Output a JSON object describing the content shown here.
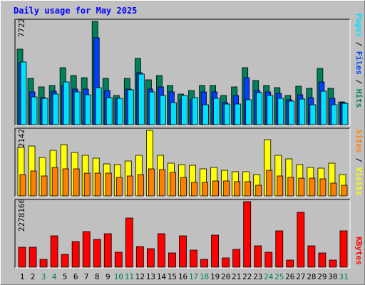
{
  "title": "Daily usage for May 2025",
  "colors": {
    "hits": "#00805c",
    "files": "#0040ff",
    "pages": "#00e0ff",
    "visits": "#ffff00",
    "sites": "#ff8000",
    "kbytes": "#ff0000",
    "title": "#0000ff",
    "weekend_label": "#00805c",
    "weekday_label": "#000000"
  },
  "chart_data": [
    {
      "type": "bar",
      "panel": "hits-files-pages",
      "max_label": "7722",
      "ylim": [
        0,
        7722
      ],
      "categories": [
        "1",
        "2",
        "3",
        "4",
        "5",
        "6",
        "7",
        "8",
        "9",
        "10",
        "11",
        "12",
        "13",
        "14",
        "15",
        "16",
        "17",
        "18",
        "19",
        "20",
        "21",
        "22",
        "23",
        "24",
        "25",
        "26",
        "27",
        "28",
        "29",
        "30",
        "31"
      ],
      "weekend_days": [
        "3",
        "4",
        "10",
        "11",
        "17",
        "18",
        "24",
        "25",
        "31"
      ],
      "series": [
        {
          "name": "Hits",
          "values": [
            5650,
            3450,
            2800,
            2950,
            4250,
            3650,
            3500,
            7722,
            3480,
            2180,
            3480,
            4950,
            3350,
            3700,
            2950,
            2300,
            2550,
            2950,
            2950,
            2200,
            2800,
            4250,
            3300,
            2950,
            2780,
            2180,
            2900,
            2700,
            4200,
            2700,
            1680
          ]
        },
        {
          "name": "Files",
          "values": [
            4650,
            2450,
            2050,
            2500,
            2950,
            2650,
            2650,
            6500,
            2550,
            1950,
            2650,
            3900,
            2650,
            2800,
            2450,
            1850,
            1850,
            2450,
            2450,
            1650,
            2200,
            3500,
            2550,
            2450,
            2350,
            1850,
            2250,
            2000,
            3200,
            1950,
            1650
          ]
        },
        {
          "name": "Pages",
          "values": [
            4700,
            2100,
            1950,
            2300,
            3200,
            2450,
            2250,
            2750,
            2050,
            1950,
            2600,
            3800,
            2450,
            2200,
            1650,
            2200,
            2050,
            1500,
            1950,
            1550,
            1550,
            1850,
            2400,
            2200,
            1950,
            1750,
            1900,
            1500,
            2500,
            1500,
            1600
          ]
        }
      ]
    },
    {
      "type": "bar",
      "panel": "visits-sites",
      "max_label": "2142",
      "ylim": [
        0,
        2142
      ],
      "categories": [
        "1",
        "2",
        "3",
        "4",
        "5",
        "6",
        "7",
        "8",
        "9",
        "10",
        "11",
        "12",
        "13",
        "14",
        "15",
        "16",
        "17",
        "18",
        "19",
        "20",
        "21",
        "22",
        "23",
        "24",
        "25",
        "26",
        "27",
        "28",
        "29",
        "30",
        "31"
      ],
      "series": [
        {
          "name": "Visits",
          "values": [
            1580,
            1630,
            1250,
            1480,
            1680,
            1430,
            1330,
            1230,
            1050,
            1030,
            1130,
            1330,
            2142,
            1330,
            1080,
            1030,
            1010,
            880,
            930,
            830,
            780,
            780,
            690,
            1830,
            1330,
            1200,
            1020,
            930,
            900,
            1060,
            700
          ]
        },
        {
          "name": "Sites",
          "values": [
            710,
            810,
            660,
            930,
            880,
            880,
            740,
            740,
            750,
            610,
            660,
            700,
            880,
            870,
            770,
            610,
            440,
            450,
            500,
            500,
            470,
            460,
            360,
            840,
            660,
            610,
            580,
            580,
            570,
            410,
            360
          ]
        }
      ]
    },
    {
      "type": "bar",
      "panel": "kbytes",
      "max_label": "2278166",
      "ylim": [
        0,
        2278166
      ],
      "categories": [
        "1",
        "2",
        "3",
        "4",
        "5",
        "6",
        "7",
        "8",
        "9",
        "10",
        "11",
        "12",
        "13",
        "14",
        "15",
        "16",
        "17",
        "18",
        "19",
        "20",
        "21",
        "22",
        "23",
        "24",
        "25",
        "26",
        "27",
        "28",
        "29",
        "30",
        "31"
      ],
      "series": [
        {
          "name": "KBytes",
          "values": [
            700000,
            690000,
            270000,
            1080000,
            440000,
            900000,
            1240000,
            960000,
            1170000,
            510000,
            1700000,
            730000,
            640000,
            1170000,
            500000,
            1080000,
            590000,
            280000,
            1120000,
            330000,
            630000,
            2278166,
            740000,
            520000,
            1270000,
            260000,
            1910000,
            740000,
            500000,
            260000,
            1270000
          ]
        }
      ]
    }
  ],
  "axis_titles": {
    "top_right": [
      {
        "text": "Hits",
        "color_key": "hits"
      },
      {
        "text": "Files",
        "color_key": "files"
      },
      {
        "text": "Pages",
        "color_key": "pages"
      }
    ],
    "mid_right": [
      {
        "text": "Visits",
        "color_key": "visits"
      },
      {
        "text": "Sites",
        "color_key": "sites"
      }
    ],
    "bot_right": [
      {
        "text": "KBytes",
        "color_key": "kbytes"
      }
    ],
    "separator": " / "
  }
}
